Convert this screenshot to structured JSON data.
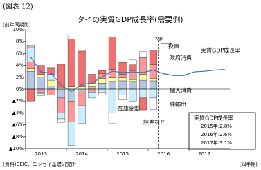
{
  "header": "(図表 12)",
  "chart_data": {
    "type": "bar",
    "stacked": true,
    "title": "タイの実質GDP成長率(需要側)",
    "y_label": "(前年同期比)",
    "x_label": "(四半期)",
    "source": "(資料)CEIC、ニッセイ基礎研究所",
    "categories": [
      "2013",
      null,
      null,
      null,
      "2014",
      null,
      null,
      null,
      "2015",
      null,
      null,
      null,
      "2016",
      null,
      null,
      null,
      "2017",
      null,
      null,
      null
    ],
    "ylim": [
      -10,
      10
    ],
    "yticks": [
      {
        "value": 10,
        "label": "10%"
      },
      {
        "value": 8,
        "label": "8%"
      },
      {
        "value": 6,
        "label": "6%"
      },
      {
        "value": 4,
        "label": "4%"
      },
      {
        "value": 2,
        "label": "2%"
      },
      {
        "value": 0,
        "label": "0%"
      },
      {
        "value": -2,
        "label": "▲2%"
      },
      {
        "value": -4,
        "label": "▲4%"
      },
      {
        "value": -6,
        "label": "▲6%"
      },
      {
        "value": -8,
        "label": "▲8%"
      },
      {
        "value": -10,
        "label": "▲10%"
      }
    ],
    "series": [
      {
        "name": "個人消費",
        "color": "#b4c7e7",
        "values": [
          3.0,
          2.0,
          0.5,
          -1.5,
          -2.0,
          -0.3,
          0.4,
          1.0,
          1.3,
          1.4,
          1.3,
          1.5,
          1.4,
          null,
          null,
          null,
          null,
          null,
          null,
          null
        ]
      },
      {
        "name": "政府消費",
        "color": "#ffff99",
        "values": [
          0.4,
          0.5,
          1.0,
          0.2,
          0.4,
          0.4,
          0.6,
          0.8,
          0.6,
          0.5,
          0.3,
          1.0,
          0.4,
          null,
          null,
          null,
          null,
          null,
          null,
          null
        ]
      },
      {
        "name": "投資",
        "color": "#ff9999",
        "values": [
          1.2,
          -0.5,
          -1.0,
          -2.5,
          -3.5,
          -2.5,
          -0.5,
          0.8,
          1.4,
          0.6,
          1.5,
          2.8,
          2.3,
          null,
          null,
          null,
          null,
          null,
          null,
          null
        ]
      },
      {
        "name": "在庫変動",
        "color": "#ccecff",
        "values": [
          2.5,
          -0.3,
          1.0,
          -1.0,
          -4.0,
          -3.0,
          -1.0,
          -0.5,
          -4.0,
          -1.0,
          -2.0,
          -1.5,
          -1.5,
          null,
          null,
          null,
          null,
          null,
          null,
          null
        ]
      },
      {
        "name": "純輸出",
        "color": "#f07070",
        "values": [
          -2.0,
          1.5,
          1.0,
          4.0,
          8.0,
          6.0,
          1.5,
          0.5,
          5.5,
          2.0,
          1.0,
          -2.0,
          2.5,
          null,
          null,
          null,
          null,
          null,
          null,
          null
        ]
      },
      {
        "name": "誤差など",
        "color": "#ffffff",
        "values": [
          0.3,
          -0.3,
          0.2,
          -0.6,
          0.7,
          0.2,
          0,
          -0.5,
          -1.8,
          -0.7,
          0.8,
          1.0,
          -1.9,
          null,
          null,
          null,
          null,
          null,
          null,
          null
        ]
      },
      {
        "name": "実質GDP成長率",
        "type": "line",
        "color": "#3b6fb6",
        "values": [
          5.4,
          2.9,
          2.7,
          0.6,
          -0.4,
          0.8,
          1.0,
          2.1,
          3.0,
          2.8,
          2.9,
          2.8,
          3.2,
          2.6,
          2.3,
          2.3,
          2.9,
          3.0,
          3.2,
          3.3
        ]
      }
    ],
    "forecast_label": "予測",
    "forecast_box": {
      "title": "実質GDP成長率",
      "lines": [
        "2015年:2.8%",
        "2016年:2.6%",
        "2017年:3.1%"
      ]
    }
  }
}
